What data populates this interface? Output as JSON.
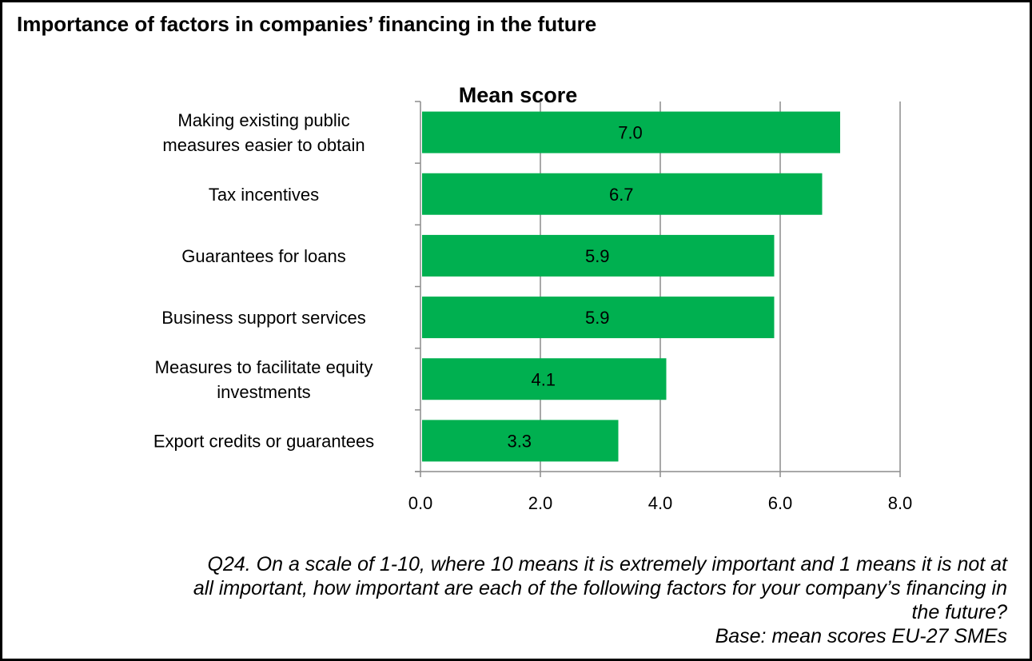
{
  "page": {
    "title": "Importance of factors in companies’ financing in the future",
    "note_lines": [
      "Q24. On a scale of 1-10, where 10 means it is extremely important and 1 means it is not at",
      "all important, how important are each of the following factors for your company’s financing in",
      "the future?",
      "Base: mean scores EU-27 SMEs"
    ]
  },
  "chart_data": {
    "type": "bar",
    "orientation": "horizontal",
    "title": "Mean score",
    "categories": [
      [
        "Making existing public",
        "measures easier to obtain"
      ],
      [
        "Tax incentives"
      ],
      [
        "Guarantees for loans"
      ],
      [
        "Business support services"
      ],
      [
        "Measures to facilitate equity",
        "investments"
      ],
      [
        "Export credits or guarantees"
      ]
    ],
    "values": [
      7.0,
      6.7,
      5.9,
      5.9,
      4.1,
      3.3
    ],
    "data_labels": [
      "7.0",
      "6.7",
      "5.9",
      "5.9",
      "4.1",
      "3.3"
    ],
    "xlim": [
      0,
      8
    ],
    "xticks": [
      "0.0",
      "2.0",
      "4.0",
      "6.0",
      "8.0"
    ],
    "grid": "vertical",
    "bar_color": "#00b050"
  }
}
